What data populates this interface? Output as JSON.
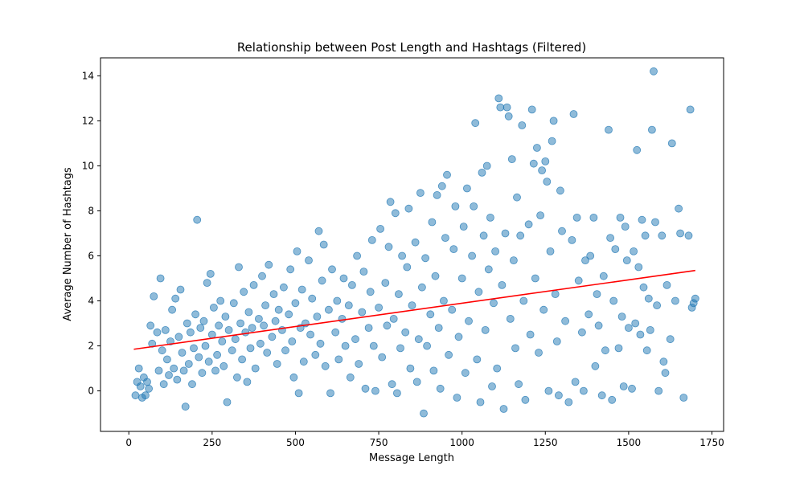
{
  "chart_data": {
    "type": "scatter",
    "title": "Relationship between Post Length and Hashtags (Filtered)",
    "xlabel": "Message Length",
    "ylabel": "Average Number of Hashtags",
    "xlim": [
      -85,
      1785
    ],
    "ylim": [
      -1.8,
      14.8
    ],
    "xticks": [
      0,
      250,
      500,
      750,
      1000,
      1250,
      1500,
      1750
    ],
    "xtick_labels": [
      "0",
      "250",
      "500",
      "750",
      "1000",
      "1250",
      "1500",
      "1750"
    ],
    "yticks": [
      0,
      2,
      4,
      6,
      8,
      10,
      12,
      14
    ],
    "ytick_labels": [
      "0",
      "2",
      "4",
      "6",
      "8",
      "10",
      "12",
      "14"
    ],
    "grid": false,
    "legend": "none",
    "colors": {
      "points": "#1f77b4",
      "trend": "#ff0000"
    },
    "series": [
      {
        "type": "scatter",
        "points": [
          [
            20,
            -0.2
          ],
          [
            25,
            0.4
          ],
          [
            30,
            1.0
          ],
          [
            35,
            0.2
          ],
          [
            40,
            -0.3
          ],
          [
            45,
            0.6
          ],
          [
            50,
            -0.2
          ],
          [
            55,
            0.4
          ],
          [
            60,
            0.1
          ],
          [
            65,
            2.9
          ],
          [
            70,
            2.1
          ],
          [
            75,
            4.2
          ],
          [
            85,
            2.6
          ],
          [
            90,
            0.9
          ],
          [
            95,
            5.0
          ],
          [
            100,
            1.8
          ],
          [
            105,
            0.3
          ],
          [
            110,
            2.7
          ],
          [
            115,
            1.4
          ],
          [
            120,
            0.7
          ],
          [
            125,
            2.2
          ],
          [
            130,
            3.6
          ],
          [
            135,
            1.0
          ],
          [
            140,
            4.1
          ],
          [
            145,
            0.5
          ],
          [
            150,
            2.4
          ],
          [
            155,
            4.5
          ],
          [
            160,
            1.7
          ],
          [
            165,
            0.9
          ],
          [
            170,
            -0.7
          ],
          [
            175,
            3.0
          ],
          [
            180,
            1.2
          ],
          [
            185,
            2.6
          ],
          [
            190,
            0.3
          ],
          [
            195,
            1.9
          ],
          [
            200,
            3.4
          ],
          [
            205,
            7.6
          ],
          [
            210,
            1.5
          ],
          [
            215,
            2.8
          ],
          [
            220,
            0.8
          ],
          [
            225,
            3.1
          ],
          [
            230,
            2.0
          ],
          [
            235,
            4.8
          ],
          [
            240,
            1.3
          ],
          [
            245,
            5.2
          ],
          [
            250,
            2.5
          ],
          [
            255,
            3.7
          ],
          [
            260,
            0.9
          ],
          [
            265,
            1.6
          ],
          [
            270,
            2.9
          ],
          [
            275,
            4.0
          ],
          [
            280,
            2.2
          ],
          [
            285,
            1.1
          ],
          [
            290,
            3.3
          ],
          [
            295,
            -0.5
          ],
          [
            300,
            2.7
          ],
          [
            310,
            1.8
          ],
          [
            315,
            3.9
          ],
          [
            320,
            2.3
          ],
          [
            325,
            0.6
          ],
          [
            330,
            5.5
          ],
          [
            335,
            3.0
          ],
          [
            340,
            1.4
          ],
          [
            345,
            4.4
          ],
          [
            350,
            2.6
          ],
          [
            355,
            0.4
          ],
          [
            360,
            3.5
          ],
          [
            365,
            1.9
          ],
          [
            370,
            2.8
          ],
          [
            375,
            4.7
          ],
          [
            380,
            1.0
          ],
          [
            390,
            3.2
          ],
          [
            395,
            2.1
          ],
          [
            400,
            5.1
          ],
          [
            405,
            2.9
          ],
          [
            410,
            3.8
          ],
          [
            415,
            1.7
          ],
          [
            420,
            5.6
          ],
          [
            430,
            2.4
          ],
          [
            435,
            4.3
          ],
          [
            440,
            3.1
          ],
          [
            445,
            1.2
          ],
          [
            450,
            3.6
          ],
          [
            460,
            2.7
          ],
          [
            465,
            4.6
          ],
          [
            470,
            1.8
          ],
          [
            480,
            3.4
          ],
          [
            485,
            5.4
          ],
          [
            490,
            2.2
          ],
          [
            495,
            0.6
          ],
          [
            500,
            3.9
          ],
          [
            505,
            6.2
          ],
          [
            510,
            -0.1
          ],
          [
            515,
            2.8
          ],
          [
            520,
            4.5
          ],
          [
            525,
            1.3
          ],
          [
            530,
            3.0
          ],
          [
            540,
            5.8
          ],
          [
            545,
            2.5
          ],
          [
            550,
            4.1
          ],
          [
            560,
            1.6
          ],
          [
            565,
            3.3
          ],
          [
            570,
            7.1
          ],
          [
            575,
            2.1
          ],
          [
            580,
            4.9
          ],
          [
            585,
            6.5
          ],
          [
            590,
            1.1
          ],
          [
            600,
            3.6
          ],
          [
            605,
            -0.1
          ],
          [
            610,
            5.4
          ],
          [
            620,
            2.6
          ],
          [
            625,
            4.0
          ],
          [
            630,
            1.4
          ],
          [
            640,
            3.2
          ],
          [
            645,
            5.0
          ],
          [
            650,
            2.0
          ],
          [
            660,
            3.8
          ],
          [
            665,
            0.6
          ],
          [
            670,
            4.7
          ],
          [
            680,
            2.3
          ],
          [
            685,
            6.0
          ],
          [
            690,
            1.2
          ],
          [
            700,
            3.5
          ],
          [
            705,
            5.3
          ],
          [
            710,
            0.1
          ],
          [
            720,
            2.8
          ],
          [
            725,
            4.4
          ],
          [
            730,
            6.7
          ],
          [
            735,
            2.0
          ],
          [
            740,
            0.0
          ],
          [
            750,
            3.7
          ],
          [
            755,
            7.2
          ],
          [
            760,
            1.5
          ],
          [
            770,
            4.8
          ],
          [
            775,
            2.9
          ],
          [
            780,
            6.4
          ],
          [
            785,
            8.4
          ],
          [
            790,
            0.3
          ],
          [
            795,
            3.2
          ],
          [
            800,
            7.9
          ],
          [
            805,
            -0.1
          ],
          [
            810,
            4.3
          ],
          [
            815,
            1.9
          ],
          [
            820,
            6.0
          ],
          [
            830,
            2.6
          ],
          [
            835,
            5.5
          ],
          [
            840,
            8.1
          ],
          [
            845,
            1.0
          ],
          [
            850,
            3.8
          ],
          [
            860,
            6.6
          ],
          [
            865,
            0.4
          ],
          [
            870,
            2.3
          ],
          [
            875,
            8.8
          ],
          [
            880,
            4.6
          ],
          [
            885,
            -1.0
          ],
          [
            890,
            5.9
          ],
          [
            895,
            2.0
          ],
          [
            905,
            3.4
          ],
          [
            910,
            7.5
          ],
          [
            915,
            0.9
          ],
          [
            920,
            5.1
          ],
          [
            925,
            8.7
          ],
          [
            930,
            2.8
          ],
          [
            935,
            0.1
          ],
          [
            940,
            9.1
          ],
          [
            945,
            4.0
          ],
          [
            950,
            6.8
          ],
          [
            955,
            9.6
          ],
          [
            960,
            1.6
          ],
          [
            970,
            3.6
          ],
          [
            975,
            6.3
          ],
          [
            980,
            8.2
          ],
          [
            985,
            -0.3
          ],
          [
            990,
            2.4
          ],
          [
            1000,
            5.0
          ],
          [
            1005,
            7.3
          ],
          [
            1010,
            0.8
          ],
          [
            1015,
            9.0
          ],
          [
            1020,
            3.1
          ],
          [
            1030,
            6.0
          ],
          [
            1035,
            8.2
          ],
          [
            1040,
            11.9
          ],
          [
            1045,
            1.4
          ],
          [
            1050,
            4.4
          ],
          [
            1055,
            -0.5
          ],
          [
            1060,
            9.7
          ],
          [
            1065,
            6.9
          ],
          [
            1070,
            2.7
          ],
          [
            1075,
            10.0
          ],
          [
            1080,
            5.4
          ],
          [
            1085,
            7.7
          ],
          [
            1090,
            0.2
          ],
          [
            1095,
            3.9
          ],
          [
            1100,
            6.2
          ],
          [
            1105,
            1.0
          ],
          [
            1110,
            13.0
          ],
          [
            1115,
            12.6
          ],
          [
            1120,
            4.7
          ],
          [
            1125,
            -0.8
          ],
          [
            1130,
            7.0
          ],
          [
            1135,
            12.6
          ],
          [
            1140,
            12.2
          ],
          [
            1145,
            3.2
          ],
          [
            1150,
            10.3
          ],
          [
            1155,
            5.8
          ],
          [
            1160,
            1.9
          ],
          [
            1165,
            8.6
          ],
          [
            1170,
            0.3
          ],
          [
            1175,
            6.9
          ],
          [
            1180,
            11.8
          ],
          [
            1185,
            4.0
          ],
          [
            1190,
            -0.4
          ],
          [
            1200,
            7.4
          ],
          [
            1205,
            2.5
          ],
          [
            1210,
            12.5
          ],
          [
            1215,
            10.1
          ],
          [
            1220,
            5.0
          ],
          [
            1225,
            10.8
          ],
          [
            1230,
            1.7
          ],
          [
            1235,
            7.8
          ],
          [
            1240,
            9.8
          ],
          [
            1245,
            3.6
          ],
          [
            1250,
            10.2
          ],
          [
            1255,
            9.3
          ],
          [
            1260,
            0.0
          ],
          [
            1265,
            6.2
          ],
          [
            1270,
            11.1
          ],
          [
            1275,
            12.0
          ],
          [
            1280,
            4.3
          ],
          [
            1285,
            2.2
          ],
          [
            1290,
            -0.2
          ],
          [
            1295,
            8.9
          ],
          [
            1300,
            7.1
          ],
          [
            1310,
            3.1
          ],
          [
            1320,
            -0.5
          ],
          [
            1330,
            6.7
          ],
          [
            1335,
            12.3
          ],
          [
            1340,
            0.4
          ],
          [
            1345,
            7.7
          ],
          [
            1350,
            4.9
          ],
          [
            1360,
            2.6
          ],
          [
            1365,
            0.0
          ],
          [
            1370,
            5.8
          ],
          [
            1380,
            3.4
          ],
          [
            1385,
            6.0
          ],
          [
            1395,
            7.7
          ],
          [
            1400,
            1.1
          ],
          [
            1405,
            4.3
          ],
          [
            1410,
            2.9
          ],
          [
            1420,
            -0.2
          ],
          [
            1425,
            5.1
          ],
          [
            1430,
            1.8
          ],
          [
            1440,
            11.6
          ],
          [
            1445,
            6.8
          ],
          [
            1450,
            -0.4
          ],
          [
            1455,
            4.0
          ],
          [
            1460,
            6.3
          ],
          [
            1470,
            1.9
          ],
          [
            1475,
            7.7
          ],
          [
            1480,
            3.3
          ],
          [
            1485,
            0.2
          ],
          [
            1490,
            7.3
          ],
          [
            1495,
            5.8
          ],
          [
            1500,
            2.8
          ],
          [
            1510,
            0.1
          ],
          [
            1515,
            6.2
          ],
          [
            1520,
            3.0
          ],
          [
            1525,
            10.7
          ],
          [
            1530,
            5.5
          ],
          [
            1535,
            2.5
          ],
          [
            1540,
            7.6
          ],
          [
            1545,
            4.6
          ],
          [
            1550,
            6.9
          ],
          [
            1555,
            1.8
          ],
          [
            1560,
            4.1
          ],
          [
            1565,
            2.7
          ],
          [
            1570,
            11.6
          ],
          [
            1575,
            14.2
          ],
          [
            1580,
            7.5
          ],
          [
            1585,
            3.8
          ],
          [
            1590,
            0.0
          ],
          [
            1600,
            6.9
          ],
          [
            1605,
            1.3
          ],
          [
            1610,
            0.8
          ],
          [
            1615,
            4.7
          ],
          [
            1625,
            2.3
          ],
          [
            1630,
            11.0
          ],
          [
            1640,
            4.0
          ],
          [
            1650,
            8.1
          ],
          [
            1655,
            7.0
          ],
          [
            1665,
            -0.3
          ],
          [
            1680,
            6.9
          ],
          [
            1685,
            12.5
          ],
          [
            1690,
            3.7
          ],
          [
            1695,
            3.9
          ],
          [
            1700,
            4.1
          ]
        ]
      },
      {
        "type": "line",
        "x": [
          15,
          1700
        ],
        "y": [
          1.85,
          5.35
        ]
      }
    ]
  }
}
